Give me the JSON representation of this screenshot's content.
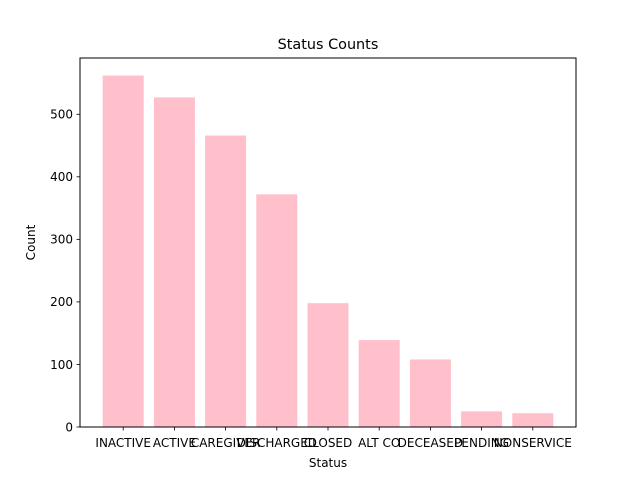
{
  "chart_data": {
    "type": "bar",
    "title": "Status Counts",
    "xlabel": "Status",
    "ylabel": "Count",
    "categories": [
      "INACTIVE",
      "ACTIVE",
      "CAREGIVER",
      "DISCHARGED",
      "CLOSED",
      "ALT CO",
      "DECEASED",
      "PENDING",
      "NONSERVICE"
    ],
    "values": [
      562,
      527,
      466,
      372,
      198,
      139,
      108,
      25,
      22
    ],
    "ylim": [
      0,
      590
    ],
    "yticks": [
      0,
      100,
      200,
      300,
      400,
      500
    ],
    "bar_color": "#ffc0cb",
    "grid": false,
    "legend": "none"
  }
}
